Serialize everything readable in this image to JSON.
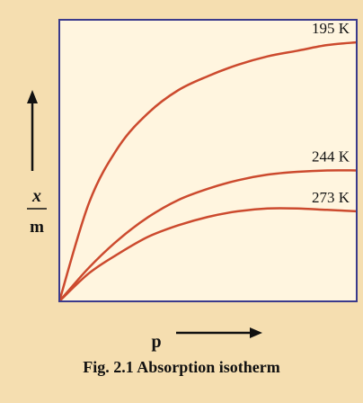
{
  "chart_data": {
    "type": "line",
    "title": "",
    "xlabel": "p",
    "ylabel_numerator": "x",
    "ylabel_denominator": "m",
    "xlim": [
      0,
      1
    ],
    "ylim": [
      0,
      1
    ],
    "grid": false,
    "series": [
      {
        "name": "195 K",
        "x": [
          0,
          0.1,
          0.2,
          0.3,
          0.4,
          0.5,
          0.6,
          0.7,
          0.8,
          0.9,
          1.0
        ],
        "values": [
          0,
          0.35,
          0.55,
          0.67,
          0.75,
          0.8,
          0.84,
          0.87,
          0.89,
          0.91,
          0.92
        ],
        "color": "#cc4a2e"
      },
      {
        "name": "244 K",
        "x": [
          0,
          0.1,
          0.2,
          0.3,
          0.4,
          0.5,
          0.6,
          0.7,
          0.8,
          0.9,
          1.0
        ],
        "values": [
          0,
          0.12,
          0.22,
          0.3,
          0.36,
          0.4,
          0.43,
          0.45,
          0.46,
          0.465,
          0.465
        ],
        "color": "#cc4a2e"
      },
      {
        "name": "273 K",
        "x": [
          0,
          0.1,
          0.2,
          0.3,
          0.4,
          0.5,
          0.6,
          0.7,
          0.8,
          0.9,
          1.0
        ],
        "values": [
          0,
          0.1,
          0.17,
          0.23,
          0.27,
          0.3,
          0.32,
          0.33,
          0.33,
          0.325,
          0.32
        ],
        "color": "#cc4a2e"
      }
    ]
  },
  "caption": "Fig. 2.1 Absorption isotherm",
  "colors": {
    "background": "#f5deb0",
    "plot_background": "#fff5df",
    "frame": "#3a3a8c",
    "curve": "#cc4a2e"
  }
}
